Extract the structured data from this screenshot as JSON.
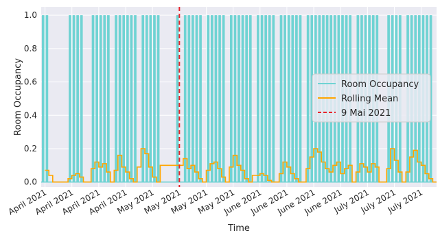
{
  "chart_data": {
    "type": "line",
    "xlabel": "Time",
    "ylabel": "Room Occupancy",
    "ylim": [
      -0.03,
      1.05
    ],
    "xlim": [
      "2021-04-03",
      "2021-07-15"
    ],
    "yticks": [
      0.0,
      0.2,
      0.4,
      0.6,
      0.8,
      1.0
    ],
    "ytick_labels": [
      "0.0",
      "0.2",
      "0.4",
      "0.6",
      "0.8",
      "1.0"
    ],
    "xticks": [
      "2021-04-04",
      "2021-04-11",
      "2021-04-18",
      "2021-04-25",
      "2021-05-02",
      "2021-05-09",
      "2021-05-16",
      "2021-05-23",
      "2021-05-30",
      "2021-06-06",
      "2021-06-13",
      "2021-06-20",
      "2021-06-27",
      "2021-07-04",
      "2021-07-11"
    ],
    "xtick_labels": [
      "April 2021",
      "April 2021",
      "April 2021",
      "April 2021",
      "May 2021",
      "May 2021",
      "May 2021",
      "May 2021",
      "June 2021",
      "June 2021",
      "June 2021",
      "June 2021",
      "July 2021",
      "July 2021",
      "July 2021"
    ],
    "grid": true,
    "legend_position": "center-right",
    "series": [
      {
        "name": "Room Occupancy",
        "color": "#6fd3d3",
        "kind": "occupancy_spikes",
        "occupied_days": [
          "2021-04-03",
          "2021-04-04",
          "2021-04-10",
          "2021-04-11",
          "2021-04-12",
          "2021-04-13",
          "2021-04-16",
          "2021-04-17",
          "2021-04-18",
          "2021-04-19",
          "2021-04-20",
          "2021-04-22",
          "2021-04-23",
          "2021-04-24",
          "2021-04-25",
          "2021-04-26",
          "2021-04-27",
          "2021-04-29",
          "2021-04-30",
          "2021-05-01",
          "2021-05-02",
          "2021-05-03",
          "2021-05-08",
          "2021-05-10",
          "2021-05-11",
          "2021-05-12",
          "2021-05-13",
          "2021-05-14",
          "2021-05-16",
          "2021-05-17",
          "2021-05-18",
          "2021-05-19",
          "2021-05-20",
          "2021-05-22",
          "2021-05-23",
          "2021-05-24",
          "2021-05-25",
          "2021-05-26",
          "2021-05-27",
          "2021-05-29",
          "2021-05-30",
          "2021-05-31",
          "2021-06-01",
          "2021-06-02",
          "2021-06-04",
          "2021-06-05",
          "2021-06-06",
          "2021-06-07",
          "2021-06-08",
          "2021-06-09",
          "2021-06-11",
          "2021-06-12",
          "2021-06-13",
          "2021-06-14",
          "2021-06-15",
          "2021-06-16",
          "2021-06-17",
          "2021-06-18",
          "2021-06-19",
          "2021-06-20",
          "2021-06-21",
          "2021-06-22",
          "2021-06-24",
          "2021-06-25",
          "2021-06-26",
          "2021-06-27",
          "2021-06-28",
          "2021-06-29",
          "2021-07-02",
          "2021-07-03",
          "2021-07-04",
          "2021-07-05",
          "2021-07-07",
          "2021-07-08",
          "2021-07-09",
          "2021-07-10",
          "2021-07-11",
          "2021-07-12",
          "2021-07-13"
        ]
      },
      {
        "name": "Rolling Mean",
        "color": "#ffa500",
        "x": [
          "2021-04-04",
          "2021-04-05",
          "2021-04-06",
          "2021-04-07",
          "2021-04-08",
          "2021-04-09",
          "2021-04-10",
          "2021-04-11",
          "2021-04-12",
          "2021-04-13",
          "2021-04-14",
          "2021-04-15",
          "2021-04-16",
          "2021-04-17",
          "2021-04-18",
          "2021-04-19",
          "2021-04-20",
          "2021-04-21",
          "2021-04-22",
          "2021-04-23",
          "2021-04-24",
          "2021-04-25",
          "2021-04-26",
          "2021-04-27",
          "2021-04-28",
          "2021-04-29",
          "2021-04-30",
          "2021-05-01",
          "2021-05-02",
          "2021-05-03",
          "2021-05-04",
          "2021-05-05",
          "2021-05-06",
          "2021-05-07",
          "2021-05-08",
          "2021-05-09",
          "2021-05-10",
          "2021-05-11",
          "2021-05-12",
          "2021-05-13",
          "2021-05-14",
          "2021-05-15",
          "2021-05-16",
          "2021-05-17",
          "2021-05-18",
          "2021-05-19",
          "2021-05-20",
          "2021-05-21",
          "2021-05-22",
          "2021-05-23",
          "2021-05-24",
          "2021-05-25",
          "2021-05-26",
          "2021-05-27",
          "2021-05-28",
          "2021-05-29",
          "2021-05-30",
          "2021-05-31",
          "2021-06-01",
          "2021-06-02",
          "2021-06-03",
          "2021-06-04",
          "2021-06-05",
          "2021-06-06",
          "2021-06-07",
          "2021-06-08",
          "2021-06-09",
          "2021-06-10",
          "2021-06-11",
          "2021-06-12",
          "2021-06-13",
          "2021-06-14",
          "2021-06-15",
          "2021-06-16",
          "2021-06-17",
          "2021-06-18",
          "2021-06-19",
          "2021-06-20",
          "2021-06-21",
          "2021-06-22",
          "2021-06-23",
          "2021-06-24",
          "2021-06-25",
          "2021-06-26",
          "2021-06-27",
          "2021-06-28",
          "2021-06-29",
          "2021-06-30",
          "2021-07-01",
          "2021-07-02",
          "2021-07-03",
          "2021-07-04",
          "2021-07-05",
          "2021-07-06",
          "2021-07-07",
          "2021-07-08",
          "2021-07-09",
          "2021-07-10",
          "2021-07-11",
          "2021-07-12",
          "2021-07-13",
          "2021-07-14"
        ],
        "values": [
          0.07,
          0.04,
          0.0,
          0.0,
          0.0,
          0.0,
          0.02,
          0.04,
          0.05,
          0.03,
          0.0,
          0.0,
          0.08,
          0.12,
          0.09,
          0.11,
          0.06,
          0.0,
          0.07,
          0.16,
          0.09,
          0.06,
          0.02,
          0.0,
          0.09,
          0.2,
          0.17,
          0.09,
          0.03,
          0.0,
          0.1,
          0.1,
          0.1,
          0.1,
          0.1,
          0.1,
          0.14,
          0.08,
          0.1,
          0.06,
          0.02,
          0.0,
          0.07,
          0.11,
          0.12,
          0.08,
          0.03,
          0.0,
          0.09,
          0.16,
          0.1,
          0.07,
          0.02,
          0.0,
          0.04,
          0.04,
          0.05,
          0.04,
          0.01,
          0.0,
          0.0,
          0.05,
          0.12,
          0.09,
          0.05,
          0.02,
          0.0,
          0.0,
          0.08,
          0.15,
          0.2,
          0.18,
          0.12,
          0.08,
          0.06,
          0.1,
          0.12,
          0.05,
          0.08,
          0.1,
          0.0,
          0.06,
          0.11,
          0.09,
          0.06,
          0.11,
          0.09,
          0.0,
          0.0,
          0.08,
          0.2,
          0.13,
          0.06,
          0.0,
          0.06,
          0.15,
          0.19,
          0.12,
          0.1,
          0.05,
          0.02,
          0.0
        ]
      },
      {
        "name": "9 Mai 2021",
        "color": "#e8232a",
        "kind": "vertical_line",
        "x": "2021-05-09"
      }
    ]
  }
}
